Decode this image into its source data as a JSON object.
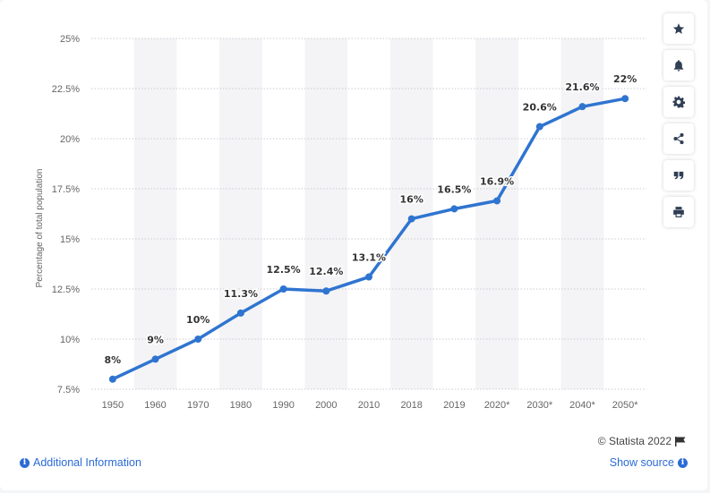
{
  "chart_data": {
    "type": "line",
    "x": [
      "1950",
      "1960",
      "1970",
      "1980",
      "1990",
      "2000",
      "2010",
      "2018",
      "2019",
      "2020*",
      "2030*",
      "2040*",
      "2050*"
    ],
    "values": [
      8,
      9,
      10,
      11.3,
      12.5,
      12.4,
      13.1,
      16,
      16.5,
      16.9,
      20.6,
      21.6,
      22
    ],
    "data_labels": [
      "8%",
      "9%",
      "10%",
      "11.3%",
      "12.5%",
      "12.4%",
      "13.1%",
      "16%",
      "16.5%",
      "16.9%",
      "20.6%",
      "21.6%",
      "22%"
    ],
    "ylabel": "Percentage of total population",
    "ylim": [
      7.5,
      25
    ],
    "yticks": [
      7.5,
      10,
      12.5,
      15,
      17.5,
      20,
      22.5,
      25
    ],
    "ytick_labels": [
      "7.5%",
      "10%",
      "12.5%",
      "15%",
      "17.5%",
      "20%",
      "22.5%",
      "25%"
    ],
    "grid": true,
    "line_color": "#2f74d0",
    "band_color": "#f4f4f6"
  },
  "toolbar": {
    "buttons": [
      {
        "name": "star-button",
        "icon": "star-icon"
      },
      {
        "name": "bell-button",
        "icon": "bell-icon"
      },
      {
        "name": "settings-button",
        "icon": "gear-icon"
      },
      {
        "name": "share-button",
        "icon": "share-icon"
      },
      {
        "name": "cite-button",
        "icon": "quote-icon"
      },
      {
        "name": "print-button",
        "icon": "print-icon"
      }
    ]
  },
  "footer": {
    "credit": "© Statista 2022",
    "additional_info": "Additional Information",
    "show_source": "Show source"
  }
}
